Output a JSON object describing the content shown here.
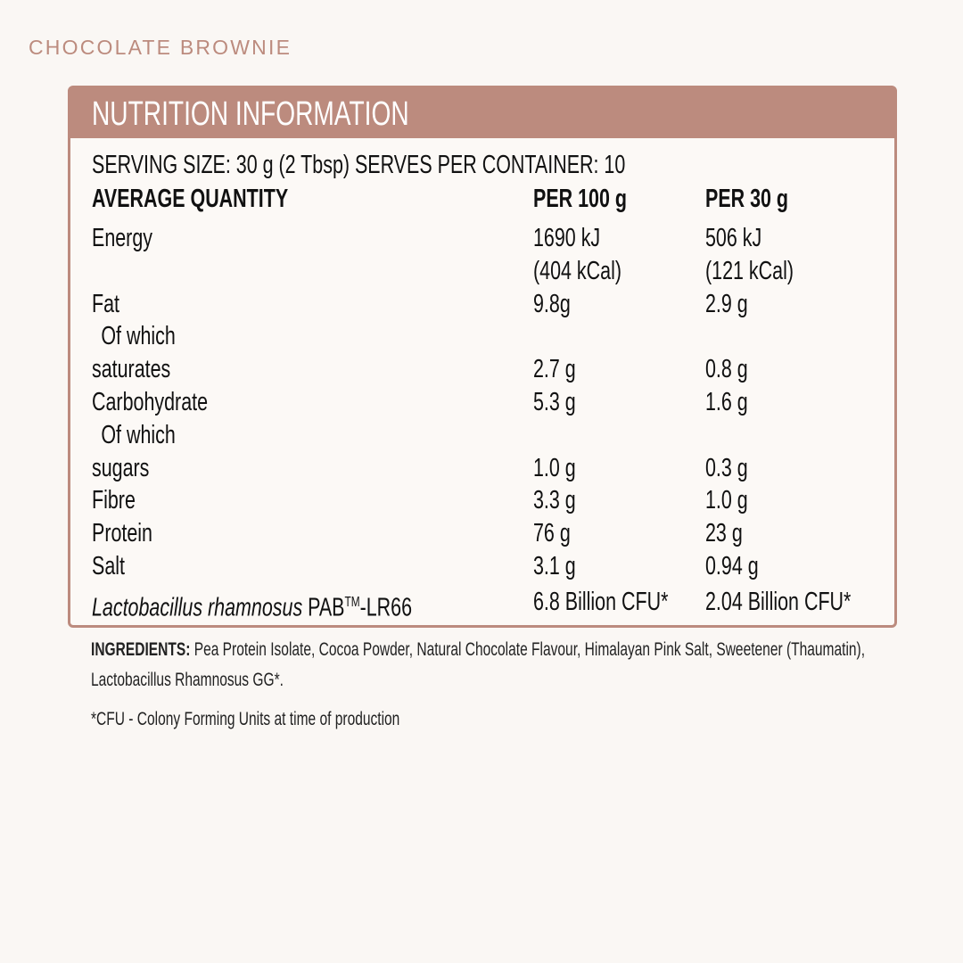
{
  "product_name": "CHOCOLATE BROWNIE",
  "colors": {
    "accent": "#bc8b7e",
    "background": "#faf7f4"
  },
  "panel": {
    "title": "NUTRITION INFORMATION",
    "serving_line": "SERVING SIZE: 30 g (2 Tbsp)  SERVES PER CONTAINER: 10",
    "headers": {
      "label": "AVERAGE QUANTITY",
      "per100": "PER 100 g",
      "per30": "PER 30 g"
    },
    "rows": [
      {
        "label": "Energy",
        "per100": "1690 kJ",
        "per30": "506 kJ"
      },
      {
        "label": "",
        "per100": "(404 kCal)",
        "per30": "(121 kCal)"
      },
      {
        "label": "Fat",
        "per100": "9.8g",
        "per30": "2.9 g"
      },
      {
        "label": "  Of which",
        "per100": "",
        "per30": ""
      },
      {
        "label": "saturates",
        "per100": "2.7 g",
        "per30": "0.8 g"
      },
      {
        "label": "Carbohydrate",
        "per100": "5.3 g",
        "per30": "1.6 g"
      },
      {
        "label": "  Of which",
        "per100": "",
        "per30": ""
      },
      {
        "label": "sugars",
        "per100": "1.0 g",
        "per30": "0.3 g"
      },
      {
        "label": "Fibre",
        "per100": "3.3 g",
        "per30": "1.0 g"
      },
      {
        "label": "Protein",
        "per100": "76 g",
        "per30": "23 g"
      },
      {
        "label": "Salt",
        "per100": "3.1 g",
        "per30": "0.94 g"
      }
    ],
    "probiotic": {
      "italic": "Lactobacillus rhamnosus",
      "name": " PAB",
      "tm": "TM",
      "suffix": "-LR66",
      "per100": "6.8 Billion CFU*",
      "per30": "2.04 Billion CFU*"
    }
  },
  "ingredients": {
    "label": "INGREDIENTS:",
    "text": " Pea Protein Isolate, Cocoa Powder, Natural Chocolate Flavour, Himalayan Pink Salt, Sweetener (Thaumatin), Lactobacillus Rhamnosus GG*."
  },
  "footnote": "*CFU - Colony Forming Units at time of production"
}
